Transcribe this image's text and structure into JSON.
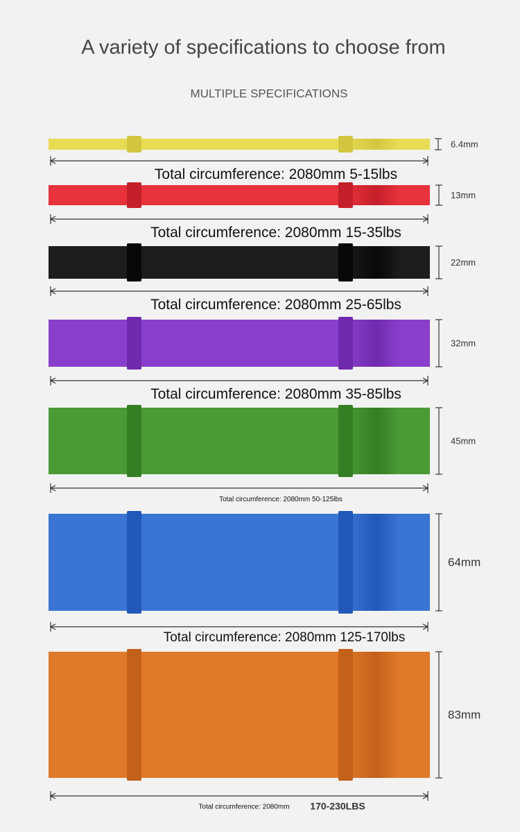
{
  "header": {
    "title": "A variety of specifications to choose from",
    "subtitle": "MULTIPLE SPECIFICATIONS"
  },
  "bands": [
    {
      "width": "6.4mm",
      "circumference": "Total circumference: 2080mm",
      "load": "5-15lbs"
    },
    {
      "width": "13mm",
      "circumference": "Total circumference: 2080mm",
      "load": "15-35lbs"
    },
    {
      "width": "22mm",
      "circumference": "Total circumference: 2080mm",
      "load": "25-65lbs"
    },
    {
      "width": "32mm",
      "circumference": "Total circumference: 2080mm",
      "load": "35-85lbs"
    },
    {
      "width": "45mm",
      "circumference": "Total circumference: 2080mm",
      "load": "50-125lbs"
    },
    {
      "width": "64mm",
      "circumference": "Total circumference: 2080mm",
      "load": "125-170lbs"
    },
    {
      "width": "83mm",
      "circumference": "Total circumference: 2080mm",
      "load": "170-230LBS"
    }
  ]
}
